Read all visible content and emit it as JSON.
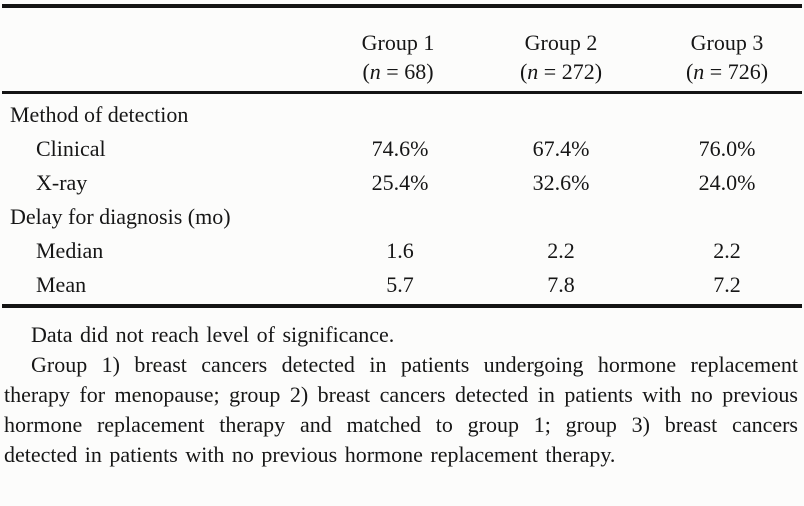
{
  "table": {
    "groups": [
      {
        "name": "Group 1",
        "n_prefix": "(",
        "n_var": "n",
        "n_suffix": " = 68)"
      },
      {
        "name": "Group 2",
        "n_prefix": "(",
        "n_var": "n",
        "n_suffix": " = 272)"
      },
      {
        "name": "Group 3",
        "n_prefix": "(",
        "n_var": "n",
        "n_suffix": " = 726)"
      }
    ],
    "rows": [
      {
        "label": "Method of detection",
        "type": "section"
      },
      {
        "label": "Clinical",
        "type": "data",
        "values": [
          "74.6%",
          "67.4%",
          "76.0%"
        ]
      },
      {
        "label": "X-ray",
        "type": "data",
        "values": [
          "25.4%",
          "32.6%",
          "24.0%"
        ]
      },
      {
        "label": "Delay for diagnosis (mo)",
        "type": "section"
      },
      {
        "label": "Median",
        "type": "data",
        "values": [
          "1.6",
          "2.2",
          "2.2"
        ]
      },
      {
        "label": "Mean",
        "type": "data",
        "values": [
          "5.7",
          "7.8",
          "7.2"
        ]
      }
    ]
  },
  "footnotes": {
    "significance": "Data did not reach level of significance.",
    "group_definitions": "Group 1) breast cancers detected in patients undergoing hormone replacement therapy for menopause; group 2) breast cancers detected in patients with no previous hormone replacement therapy and matched to group 1; group 3) breast cancers detected in patients with no previous hormone replacement therapy."
  }
}
